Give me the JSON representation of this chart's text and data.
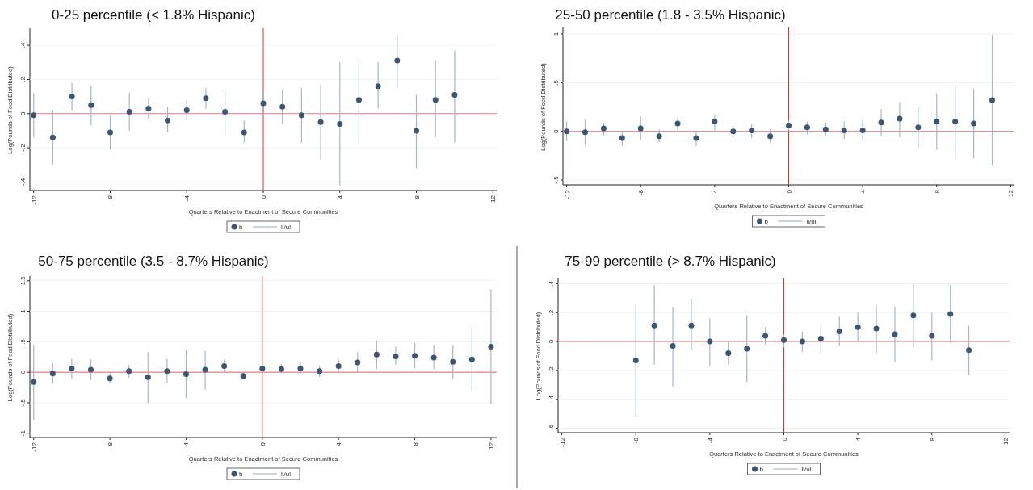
{
  "chart_data": [
    {
      "type": "scatter",
      "title": "0-25 percentile (< 1.8% Hispanic)",
      "xlabel": "Quarters Relative to Enactment of Secure Communities",
      "ylabel": "Log(Pounds of Food Distributed)",
      "xlim": [
        -12.2,
        12.2
      ],
      "xticks": [
        -12,
        -8,
        -4,
        0,
        4,
        8,
        12
      ],
      "ylim": [
        -0.45,
        0.49
      ],
      "yticks": [
        {
          "value": -0.4,
          "label": "-.4"
        },
        {
          "value": -0.2,
          "label": "-.2"
        },
        0,
        {
          "value": 0.2,
          "label": ".2"
        },
        {
          "value": 0.4,
          "label": ".4"
        }
      ],
      "grid": "y",
      "legend": "bottom",
      "marker": "circle",
      "annotations": [
        "ll/ul"
      ],
      "ref_lines": [
        {
          "axis": "x",
          "value": 0,
          "color": "#e8302a"
        },
        {
          "axis": "y",
          "value": 0,
          "color": "#e87a7a"
        }
      ],
      "x": [
        -12,
        -11,
        -10,
        -9,
        -8,
        -7,
        -6,
        -5,
        -4,
        -3,
        -2,
        -1,
        0,
        1,
        2,
        3,
        4,
        5,
        6,
        7,
        8,
        9,
        10
      ],
      "series": [
        {
          "name": "b",
          "color": "#3b5573",
          "values": [
            -0.01,
            -0.14,
            0.1,
            0.05,
            -0.11,
            0.01,
            0.03,
            -0.04,
            0.02,
            0.09,
            0.01,
            -0.11,
            0.06,
            0.04,
            -0.01,
            -0.05,
            -0.06,
            0.08,
            0.16,
            0.31,
            -0.1,
            0.08,
            0.11
          ],
          "errors": [
            [
              -0.14,
              0.12
            ],
            [
              -0.3,
              0.02
            ],
            [
              0.02,
              0.18
            ],
            [
              -0.07,
              0.16
            ],
            [
              -0.21,
              -0.01
            ],
            [
              -0.1,
              0.12
            ],
            [
              -0.03,
              0.09
            ],
            [
              -0.11,
              0.04
            ],
            [
              -0.04,
              0.08
            ],
            [
              0.03,
              0.15
            ],
            [
              -0.11,
              0.13
            ],
            [
              -0.17,
              -0.04
            ],
            [
              -0.01,
              0.13
            ],
            [
              -0.06,
              0.14
            ],
            [
              -0.17,
              0.15
            ],
            [
              -0.27,
              0.17
            ],
            [
              -0.42,
              0.3
            ],
            [
              -0.17,
              0.32
            ],
            [
              0.03,
              0.3
            ],
            [
              0.15,
              0.46
            ],
            [
              -0.32,
              0.11
            ],
            [
              -0.14,
              0.31
            ],
            [
              -0.17,
              0.37
            ]
          ]
        }
      ]
    },
    {
      "type": "scatter",
      "title": "25-50 percentile (1.8 - 3.5% Hispanic)",
      "xlabel": "Quarters Relative to Enactment of Secure Communities",
      "ylabel": "Log(Pounds of Food Distributed)",
      "xlim": [
        -12.2,
        12.2
      ],
      "xticks": [
        -12,
        -8,
        -4,
        0,
        4,
        8,
        12
      ],
      "ylim": [
        -0.55,
        1.05
      ],
      "yticks": [
        {
          "value": -0.5,
          "label": "-.5"
        },
        0,
        {
          "value": 0.5,
          "label": ".5"
        },
        1
      ],
      "grid": "y",
      "legend": "bottom",
      "marker": "circle",
      "annotations": [
        "ll/ul"
      ],
      "ref_lines": [
        {
          "axis": "x",
          "value": 0,
          "color": "#e8302a"
        },
        {
          "axis": "y",
          "value": 0,
          "color": "#e87a7a"
        }
      ],
      "x": [
        -12,
        -11,
        -10,
        -9,
        -8,
        -7,
        -6,
        -5,
        -4,
        -3,
        -2,
        -1,
        0,
        1,
        2,
        3,
        4,
        5,
        6,
        7,
        8,
        9,
        10,
        11
      ],
      "series": [
        {
          "name": "b",
          "color": "#3b5573",
          "values": [
            0,
            -0.01,
            0.03,
            -0.07,
            0.03,
            -0.05,
            0.08,
            -0.07,
            0.1,
            0,
            0.01,
            -0.05,
            0.06,
            0.04,
            0.02,
            0.01,
            0.01,
            0.09,
            0.13,
            0.04,
            0.1,
            0.1,
            0.08,
            0.32
          ],
          "errors": [
            [
              -0.1,
              0.1
            ],
            [
              -0.14,
              0.12
            ],
            [
              -0.04,
              0.09
            ],
            [
              -0.15,
              0
            ],
            [
              -0.09,
              0.15
            ],
            [
              -0.11,
              0.02
            ],
            [
              0.01,
              0.14
            ],
            [
              -0.15,
              0.01
            ],
            [
              0.01,
              0.17
            ],
            [
              -0.06,
              0.06
            ],
            [
              -0.07,
              0.08
            ],
            [
              -0.12,
              0.02
            ],
            [
              0.01,
              0.11
            ],
            [
              -0.03,
              0.1
            ],
            [
              -0.05,
              0.09
            ],
            [
              -0.08,
              0.1
            ],
            [
              -0.1,
              0.12
            ],
            [
              -0.05,
              0.23
            ],
            [
              -0.06,
              0.3
            ],
            [
              -0.17,
              0.25
            ],
            [
              -0.19,
              0.39
            ],
            [
              -0.28,
              0.48
            ],
            [
              -0.28,
              0.44
            ],
            [
              -0.35,
              0.99
            ]
          ]
        }
      ]
    },
    {
      "type": "scatter",
      "title": "50-75 percentile (3.5 - 8.7% Hispanic)",
      "xlabel": "Quarters Relative to Enactment of Secure Communities",
      "ylabel": "Log(Pounds of Food Distributed)",
      "xlim": [
        -12.2,
        12.3
      ],
      "xticks": [
        -12,
        -8,
        -4,
        0,
        4,
        8,
        12
      ],
      "ylim": [
        -1.07,
        1.55
      ],
      "yticks": [
        -1,
        {
          "value": -0.5,
          "label": "-.5"
        },
        0,
        {
          "value": 0.5,
          "label": ".5"
        },
        1,
        1.5
      ],
      "grid": "y",
      "legend": "bottom",
      "marker": "circle",
      "annotations": [
        "ll/ul"
      ],
      "ref_lines": [
        {
          "axis": "x",
          "value": 0,
          "color": "#e8302a"
        },
        {
          "axis": "y",
          "value": 0,
          "color": "#e85a55"
        }
      ],
      "x": [
        -12,
        -11,
        -10,
        -9,
        -8,
        -7,
        -6,
        -5,
        -4,
        -3,
        -2,
        -1,
        0,
        1,
        2,
        3,
        4,
        5,
        6,
        7,
        8,
        9,
        10,
        11,
        12
      ],
      "series": [
        {
          "name": "b",
          "color": "#3b5573",
          "values": [
            -0.16,
            -0.02,
            0.06,
            0.04,
            -0.1,
            0.02,
            -0.08,
            0.02,
            -0.03,
            0.04,
            0.1,
            -0.06,
            0.06,
            0.05,
            0.06,
            0.02,
            0.1,
            0.16,
            0.29,
            0.26,
            0.27,
            0.24,
            0.17,
            0.21,
            0.42
          ],
          "errors": [
            [
              -0.78,
              0.45
            ],
            [
              -0.19,
              0.15
            ],
            [
              -0.11,
              0.22
            ],
            [
              -0.13,
              0.21
            ],
            [
              -0.18,
              0
            ],
            [
              -0.09,
              0.12
            ],
            [
              -0.5,
              0.33
            ],
            [
              -0.17,
              0.22
            ],
            [
              -0.42,
              0.36
            ],
            [
              -0.29,
              0.35
            ],
            [
              0,
              0.2
            ],
            [
              -0.12,
              0
            ],
            [
              0,
              0.12
            ],
            [
              -0.02,
              0.13
            ],
            [
              -0.02,
              0.16
            ],
            [
              -0.08,
              0.11
            ],
            [
              0,
              0.21
            ],
            [
              0,
              0.33
            ],
            [
              0.05,
              0.51
            ],
            [
              0.12,
              0.42
            ],
            [
              0.06,
              0.48
            ],
            [
              0.05,
              0.45
            ],
            [
              -0.11,
              0.45
            ],
            [
              -0.31,
              0.73
            ],
            [
              -0.52,
              1.36
            ]
          ]
        }
      ]
    },
    {
      "type": "scatter",
      "title": "75-99 percentile (> 8.7% Hispanic)",
      "xlabel": "Quarters Relative to Enactment of Secure Communities",
      "ylabel": "Log(Pounds of Food Distributed)",
      "xlim": [
        -12.2,
        12.2
      ],
      "xticks": [
        -12,
        -8,
        -4,
        0,
        4,
        8,
        12
      ],
      "ylim": [
        -0.63,
        0.43
      ],
      "yticks": [
        {
          "value": -0.6,
          "label": "-.6"
        },
        {
          "value": -0.4,
          "label": "-.4"
        },
        {
          "value": -0.2,
          "label": "-.2"
        },
        0,
        {
          "value": 0.2,
          "label": ".2"
        },
        {
          "value": 0.4,
          "label": ".4"
        }
      ],
      "grid": "y",
      "legend": "bottom",
      "marker": "circle",
      "annotations": [
        "ll/ul"
      ],
      "ref_lines": [
        {
          "axis": "x",
          "value": 0,
          "color": "#e8302a"
        },
        {
          "axis": "y",
          "value": 0,
          "color": "#e87a7a"
        }
      ],
      "x": [
        -8,
        -7,
        -6,
        -5,
        -4,
        -3,
        -2,
        -1,
        0,
        1,
        2,
        3,
        4,
        5,
        6,
        7,
        8,
        9,
        10
      ],
      "series": [
        {
          "name": "b",
          "color": "#3b5573",
          "values": [
            -0.13,
            0.11,
            -0.03,
            0.11,
            0,
            -0.08,
            -0.05,
            0.04,
            0.01,
            0,
            0.02,
            0.07,
            0.1,
            0.09,
            0.05,
            0.18,
            0.04,
            0.19,
            -0.06
          ],
          "errors": [
            [
              -0.52,
              0.26
            ],
            [
              -0.16,
              0.39
            ],
            [
              -0.31,
              0.24
            ],
            [
              -0.06,
              0.29
            ],
            [
              -0.17,
              0.16
            ],
            [
              -0.16,
              0
            ],
            [
              -0.28,
              0.18
            ],
            [
              -0.02,
              0.1
            ],
            [
              -0.04,
              0.05
            ],
            [
              -0.07,
              0.07
            ],
            [
              -0.08,
              0.11
            ],
            [
              -0.03,
              0.17
            ],
            [
              0,
              0.2
            ],
            [
              -0.08,
              0.25
            ],
            [
              -0.14,
              0.24
            ],
            [
              -0.04,
              0.4
            ],
            [
              -0.13,
              0.2
            ],
            [
              -0.01,
              0.39
            ],
            [
              -0.23,
              0.11
            ]
          ]
        }
      ]
    }
  ]
}
